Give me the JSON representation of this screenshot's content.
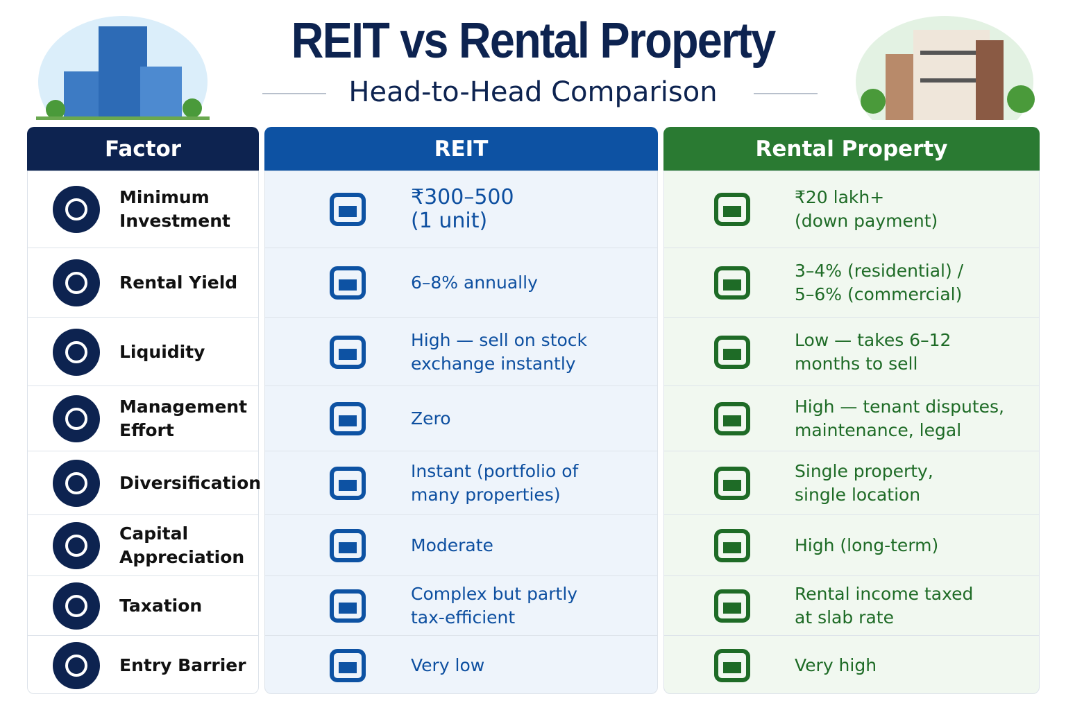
{
  "header": {
    "title": "REIT vs Rental Property",
    "subtitle": "Head-to-Head Comparison"
  },
  "table": {
    "columns": [
      "Factor",
      "REIT",
      "Rental Property"
    ],
    "rows": [
      [
        [
          "Minimum",
          "Investment"
        ],
        [
          "₹300–500",
          "(1 unit)"
        ],
        [
          "₹20 lakh+",
          "(down payment)"
        ]
      ],
      [
        [
          "Rental Yield"
        ],
        [
          "6–8% annually"
        ],
        [
          "3–4% (residential) /",
          "5–6% (commercial)"
        ]
      ],
      [
        [
          "Liquidity"
        ],
        [
          "High — sell on stock",
          "exchange instantly"
        ],
        [
          "Low — takes 6–12",
          "months to sell"
        ]
      ],
      [
        [
          "Management",
          "Effort"
        ],
        [
          "Zero"
        ],
        [
          "High — tenant disputes,",
          "maintenance, legal"
        ]
      ],
      [
        [
          "Diversification"
        ],
        [
          "Instant (portfolio of",
          "many properties)"
        ],
        [
          "Single property,",
          "single location"
        ]
      ],
      [
        [
          "Capital",
          "Appreciation"
        ],
        [
          "Moderate"
        ],
        [
          "High (long-term)"
        ]
      ],
      [
        [
          "Taxation"
        ],
        [
          "Complex but partly",
          "tax-efficient"
        ],
        [
          "Rental income taxed",
          "at slab rate"
        ]
      ],
      [
        [
          "Entry Barrier"
        ],
        [
          "Very low"
        ],
        [
          "Very high"
        ]
      ]
    ]
  }
}
